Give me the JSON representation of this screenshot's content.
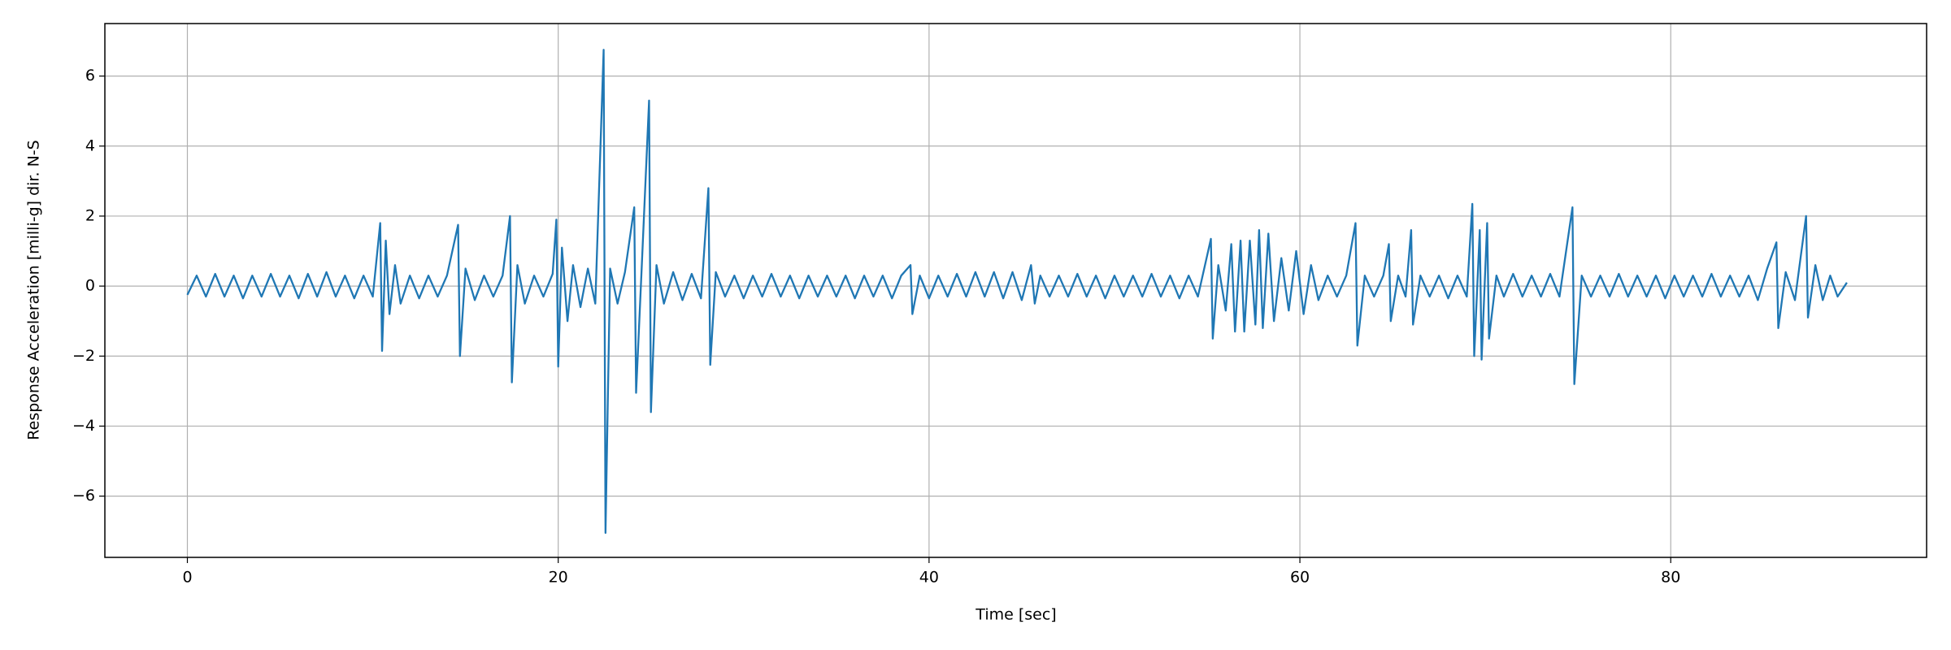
{
  "chart_data": {
    "type": "line",
    "xlabel": "Time [sec]",
    "ylabel": "Response Acceleration [milli-g] dir. N-S",
    "color": "#1f77b4",
    "grid": true,
    "xlim": [
      -4.45,
      93.8
    ],
    "ylim": [
      -7.75,
      7.5
    ],
    "xticks": [
      0,
      20,
      40,
      60,
      80
    ],
    "yticks": [
      {
        "value": -6,
        "label": "−6"
      },
      {
        "value": -4,
        "label": "−4"
      },
      {
        "value": -2,
        "label": "−2"
      },
      0,
      2,
      4,
      6
    ],
    "x": [
      0,
      0.5,
      1,
      1.5,
      2,
      2.5,
      3,
      3.5,
      4,
      4.5,
      5,
      5.5,
      6,
      6.5,
      7,
      7.5,
      8,
      8.5,
      9,
      9.5,
      10,
      10.4,
      10.5,
      10.7,
      10.9,
      11.2,
      11.5,
      12,
      12.5,
      13,
      13.5,
      14,
      14.6,
      14.7,
      15,
      15.5,
      16,
      16.5,
      17,
      17.4,
      17.5,
      17.8,
      18.2,
      18.7,
      19.2,
      19.7,
      19.9,
      20,
      20.2,
      20.5,
      20.8,
      21.2,
      21.6,
      22,
      22.45,
      22.55,
      22.8,
      23.2,
      23.6,
      24.1,
      24.2,
      24.5,
      24.9,
      25,
      25.3,
      25.7,
      26.2,
      26.7,
      27.2,
      27.7,
      28.1,
      28.2,
      28.5,
      29,
      29.5,
      30,
      30.5,
      31,
      31.5,
      32,
      32.5,
      33,
      33.5,
      34,
      34.5,
      35,
      35.5,
      36,
      36.5,
      37,
      37.5,
      38,
      38.5,
      39,
      39.1,
      39.5,
      40,
      40.5,
      41,
      41.5,
      42,
      42.5,
      43,
      43.5,
      44,
      44.5,
      45,
      45.5,
      45.7,
      46,
      46.5,
      47,
      47.5,
      48,
      48.5,
      49,
      49.5,
      50,
      50.5,
      51,
      51.5,
      52,
      52.5,
      53,
      53.5,
      54,
      54.5,
      55.2,
      55.3,
      55.6,
      56,
      56.3,
      56.5,
      56.8,
      57,
      57.3,
      57.6,
      57.8,
      58,
      58.3,
      58.6,
      59,
      59.4,
      59.8,
      60.2,
      60.6,
      61,
      61.5,
      62,
      62.5,
      63,
      63.1,
      63.5,
      64,
      64.5,
      64.8,
      64.9,
      65.3,
      65.7,
      66,
      66.1,
      66.5,
      67,
      67.5,
      68,
      68.5,
      69,
      69.3,
      69.4,
      69.7,
      69.8,
      70.1,
      70.2,
      70.6,
      71,
      71.5,
      72,
      72.5,
      73,
      73.5,
      74,
      74.7,
      74.8,
      75.2,
      75.7,
      76.2,
      76.7,
      77.2,
      77.7,
      78.2,
      78.7,
      79.2,
      79.7,
      80.2,
      80.7,
      81.2,
      81.7,
      82.2,
      82.7,
      83.2,
      83.7,
      84.2,
      84.7,
      85.2,
      85.7,
      85.8,
      86.2,
      86.7,
      87.3,
      87.4,
      87.8,
      88.2,
      88.6,
      89,
      89.5
    ],
    "values": [
      -0.25,
      0.3,
      -0.3,
      0.35,
      -0.3,
      0.3,
      -0.35,
      0.3,
      -0.3,
      0.35,
      -0.3,
      0.3,
      -0.35,
      0.35,
      -0.3,
      0.4,
      -0.3,
      0.3,
      -0.35,
      0.3,
      -0.3,
      1.8,
      -1.85,
      1.3,
      -0.8,
      0.6,
      -0.5,
      0.3,
      -0.35,
      0.3,
      -0.3,
      0.3,
      1.75,
      -2.0,
      0.5,
      -0.4,
      0.3,
      -0.3,
      0.3,
      2.0,
      -2.75,
      0.6,
      -0.5,
      0.3,
      -0.3,
      0.35,
      1.9,
      -2.3,
      1.1,
      -1.0,
      0.6,
      -0.6,
      0.5,
      -0.5,
      6.75,
      -7.05,
      0.5,
      -0.5,
      0.4,
      2.25,
      -3.05,
      0.5,
      5.3,
      -3.6,
      0.6,
      -0.5,
      0.4,
      -0.4,
      0.35,
      -0.35,
      2.8,
      -2.25,
      0.4,
      -0.3,
      0.3,
      -0.35,
      0.3,
      -0.3,
      0.35,
      -0.3,
      0.3,
      -0.35,
      0.3,
      -0.3,
      0.3,
      -0.3,
      0.3,
      -0.35,
      0.3,
      -0.3,
      0.3,
      -0.35,
      0.3,
      0.6,
      -0.8,
      0.3,
      -0.35,
      0.3,
      -0.3,
      0.35,
      -0.3,
      0.4,
      -0.3,
      0.4,
      -0.35,
      0.4,
      -0.4,
      0.6,
      -0.5,
      0.3,
      -0.3,
      0.3,
      -0.3,
      0.35,
      -0.3,
      0.3,
      -0.35,
      0.3,
      -0.3,
      0.3,
      -0.3,
      0.35,
      -0.3,
      0.3,
      -0.35,
      0.3,
      -0.3,
      1.35,
      -1.5,
      0.6,
      -0.7,
      1.2,
      -1.3,
      1.3,
      -1.3,
      1.3,
      -1.1,
      1.6,
      -1.2,
      1.5,
      -1.0,
      0.8,
      -0.7,
      1.0,
      -0.8,
      0.6,
      -0.4,
      0.3,
      -0.3,
      0.3,
      1.8,
      -1.7,
      0.3,
      -0.3,
      0.3,
      1.2,
      -1.0,
      0.3,
      -0.3,
      1.6,
      -1.1,
      0.3,
      -0.3,
      0.3,
      -0.35,
      0.3,
      -0.3,
      2.35,
      -2.0,
      1.6,
      -2.1,
      1.8,
      -1.5,
      0.3,
      -0.3,
      0.35,
      -0.3,
      0.3,
      -0.3,
      0.35,
      -0.3,
      2.25,
      -2.8,
      0.3,
      -0.3,
      0.3,
      -0.3,
      0.35,
      -0.3,
      0.3,
      -0.3,
      0.3,
      -0.35,
      0.3,
      -0.3,
      0.3,
      -0.3,
      0.35,
      -0.3,
      0.3,
      -0.3,
      0.3,
      -0.4,
      0.5,
      1.25,
      -1.2,
      0.4,
      -0.4,
      2.0,
      -0.9,
      0.6,
      -0.4,
      0.3,
      -0.3,
      0.1
    ]
  }
}
